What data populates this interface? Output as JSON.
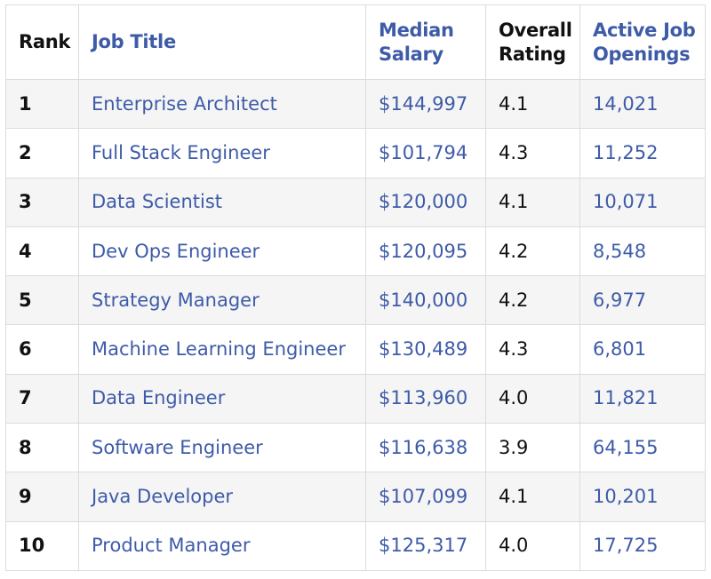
{
  "table": {
    "headers": {
      "rank": "Rank",
      "job_title": "Job Title",
      "median_salary_line1": "Median",
      "median_salary_line2": "Salary",
      "overall_rating_line1": "Overall",
      "overall_rating_line2": "Rating",
      "active_openings_line1": "Active Job",
      "active_openings_line2": "Openings"
    },
    "rows": [
      {
        "rank": "1",
        "title": "Enterprise Architect",
        "salary": "$144,997",
        "rating": "4.1",
        "openings": "14,021"
      },
      {
        "rank": "2",
        "title": "Full Stack Engineer",
        "salary": "$101,794",
        "rating": "4.3",
        "openings": "11,252"
      },
      {
        "rank": "3",
        "title": "Data Scientist",
        "salary": "$120,000",
        "rating": "4.1",
        "openings": "10,071"
      },
      {
        "rank": "4",
        "title": "Dev Ops Engineer",
        "salary": "$120,095",
        "rating": "4.2",
        "openings": "8,548"
      },
      {
        "rank": "5",
        "title": "Strategy Manager",
        "salary": "$140,000",
        "rating": "4.2",
        "openings": "6,977"
      },
      {
        "rank": "6",
        "title": "Machine Learning Engineer",
        "salary": "$130,489",
        "rating": "4.3",
        "openings": "6,801"
      },
      {
        "rank": "7",
        "title": "Data Engineer",
        "salary": "$113,960",
        "rating": "4.0",
        "openings": "11,821"
      },
      {
        "rank": "8",
        "title": "Software Engineer",
        "salary": "$116,638",
        "rating": "3.9",
        "openings": "64,155"
      },
      {
        "rank": "9",
        "title": "Java Developer",
        "salary": "$107,099",
        "rating": "4.1",
        "openings": "10,201"
      },
      {
        "rank": "10",
        "title": "Product Manager",
        "salary": "$125,317",
        "rating": "4.0",
        "openings": "17,725"
      }
    ]
  },
  "colors": {
    "link": "#3e5ba8",
    "text": "#111111",
    "stripe": "#f5f5f5",
    "border": "#dcdcdc"
  }
}
